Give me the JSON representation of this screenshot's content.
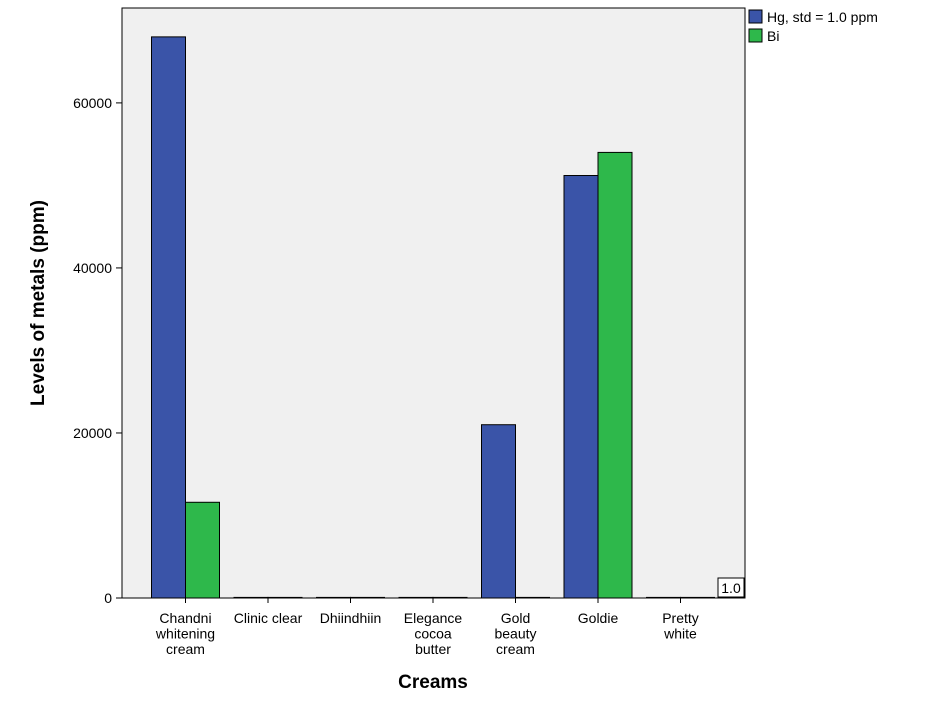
{
  "chart_data": {
    "type": "bar",
    "title": "",
    "xlabel": "Creams",
    "ylabel": "Levels of metals (ppm)",
    "ylim": [
      0,
      71500
    ],
    "yticks": [
      0,
      20000,
      40000,
      60000
    ],
    "ytick_labels": [
      "0",
      "20000",
      "40000",
      "60000"
    ],
    "grid": false,
    "legend_position": "top-right, outside plot",
    "categories": [
      [
        "Chandni",
        "whitening",
        "cream"
      ],
      [
        "Clinic clear"
      ],
      [
        "Dhiindhiin"
      ],
      [
        "Elegance",
        "cocoa",
        "butter"
      ],
      [
        "Gold",
        "beauty",
        "cream"
      ],
      [
        "Goldie"
      ],
      [
        "Pretty",
        "white"
      ]
    ],
    "series": [
      {
        "name": "Hg, std = 1.0 ppm",
        "color": "#3a54a8",
        "values": [
          68000,
          0,
          0,
          0,
          21000,
          51200,
          0
        ]
      },
      {
        "name": "Bi",
        "color": "#2eb84b",
        "values": [
          11600,
          0,
          0,
          0,
          0,
          54000,
          0
        ]
      }
    ],
    "plot_background": "#f0f0f0",
    "annotation": "1.0"
  }
}
